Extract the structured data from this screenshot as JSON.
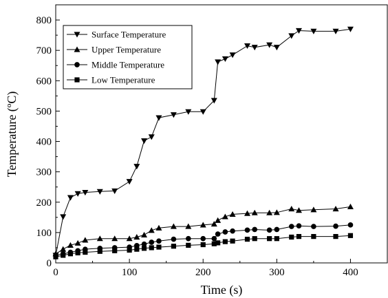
{
  "chart_data": {
    "type": "line",
    "title": "",
    "xlabel": "Time (s)",
    "ylabel": "Temperature (ºC)",
    "xlim": [
      0,
      450
    ],
    "ylim": [
      0,
      850
    ],
    "xticks": [
      0,
      100,
      200,
      300,
      400
    ],
    "yticks": [
      0,
      100,
      200,
      300,
      400,
      500,
      600,
      700,
      800
    ],
    "grid": false,
    "legend_position": "top-left",
    "series": [
      {
        "name": "Surface Temperature",
        "marker": "triangle-down",
        "color": "#000000",
        "x": [
          0,
          10,
          20,
          30,
          40,
          60,
          80,
          100,
          110,
          120,
          130,
          140,
          160,
          180,
          200,
          215,
          220,
          230,
          240,
          260,
          270,
          290,
          300,
          320,
          330,
          350,
          380,
          400
        ],
        "y": [
          25,
          152,
          215,
          228,
          232,
          235,
          237,
          268,
          318,
          402,
          415,
          478,
          488,
          498,
          498,
          535,
          662,
          672,
          685,
          715,
          710,
          718,
          710,
          748,
          765,
          763,
          763,
          770
        ]
      },
      {
        "name": "Upper Temperature",
        "marker": "triangle-up",
        "color": "#000000",
        "x": [
          0,
          10,
          20,
          30,
          40,
          60,
          80,
          100,
          110,
          120,
          130,
          140,
          160,
          180,
          200,
          215,
          220,
          230,
          240,
          260,
          270,
          290,
          300,
          320,
          330,
          350,
          380,
          400
        ],
        "y": [
          30,
          45,
          58,
          65,
          75,
          80,
          80,
          80,
          85,
          92,
          107,
          115,
          120,
          120,
          125,
          128,
          140,
          152,
          160,
          163,
          165,
          165,
          166,
          178,
          173,
          175,
          178,
          185
        ]
      },
      {
        "name": "Middle Temperature",
        "marker": "circle",
        "color": "#000000",
        "x": [
          0,
          10,
          20,
          30,
          40,
          60,
          80,
          100,
          110,
          120,
          130,
          140,
          160,
          180,
          200,
          215,
          220,
          230,
          240,
          260,
          270,
          290,
          300,
          320,
          330,
          350,
          380,
          400
        ],
        "y": [
          25,
          30,
          35,
          40,
          45,
          48,
          50,
          52,
          57,
          62,
          68,
          72,
          78,
          80,
          80,
          80,
          95,
          102,
          105,
          108,
          110,
          108,
          110,
          120,
          122,
          120,
          121,
          125
        ]
      },
      {
        "name": "Low Temperature",
        "marker": "square",
        "color": "#000000",
        "x": [
          0,
          10,
          20,
          30,
          40,
          60,
          80,
          100,
          110,
          120,
          130,
          140,
          160,
          180,
          200,
          215,
          220,
          230,
          240,
          260,
          270,
          290,
          300,
          320,
          330,
          350,
          380,
          400
        ],
        "y": [
          20,
          25,
          30,
          33,
          35,
          38,
          40,
          42,
          45,
          48,
          50,
          52,
          55,
          58,
          60,
          63,
          66,
          70,
          72,
          78,
          80,
          80,
          80,
          85,
          87,
          87,
          87,
          90
        ]
      }
    ]
  }
}
